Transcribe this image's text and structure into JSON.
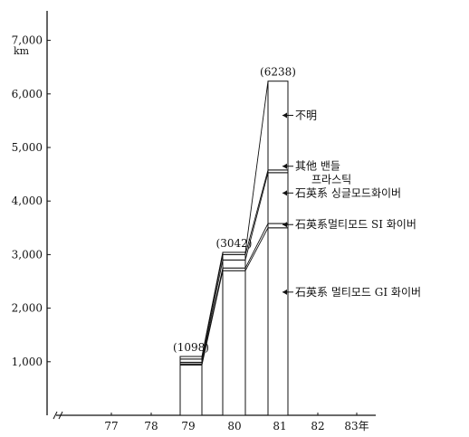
{
  "chart_data": {
    "type": "bar",
    "title": "",
    "xlabel": "",
    "ylabel": "",
    "unit_label": "km",
    "ylim": [
      0,
      7000
    ],
    "y_ticks": [
      {
        "value": 1000,
        "label": "1,000"
      },
      {
        "value": 2000,
        "label": "2,000"
      },
      {
        "value": 3000,
        "label": "3,000"
      },
      {
        "value": 4000,
        "label": "4,000"
      },
      {
        "value": 5000,
        "label": "5,000"
      },
      {
        "value": 6000,
        "label": "6,000"
      },
      {
        "value": 7000,
        "label": "7,000"
      }
    ],
    "x_tick_labels": [
      "77",
      "78",
      "79",
      "80",
      "81",
      "82",
      "83年"
    ],
    "categories": [
      "79",
      "80",
      "81"
    ],
    "totals": [
      1098,
      3042,
      6238
    ],
    "total_labels": [
      "(1098)",
      "(3042)",
      "(6238)"
    ],
    "series": [
      {
        "name": "石英系 멀티모드 GI 화이버",
        "values": [
          940,
          2700,
          3500
        ]
      },
      {
        "name": "石英系멀티모드 SI 화이버",
        "values": [
          20,
          50,
          80
        ]
      },
      {
        "name": "石英系 싱글모드화이버",
        "values": [
          30,
          150,
          950
        ]
      },
      {
        "name": "其他 밴들 프라스틱",
        "values": [
          60,
          100,
          50
        ]
      },
      {
        "name": "不明",
        "values": [
          48,
          42,
          1658
        ]
      }
    ],
    "annotation_values": [
      2300,
      3560,
      4150,
      4650,
      5600
    ],
    "annotation_labels": [
      [
        "石英系 멀티모드 GI 화이버"
      ],
      [
        "石英系멀티모드 SI 화이버"
      ],
      [
        "石英系 싱글모드화이버"
      ],
      [
        "其他  밴들",
        "프라스틱"
      ],
      [
        "不明"
      ]
    ]
  }
}
